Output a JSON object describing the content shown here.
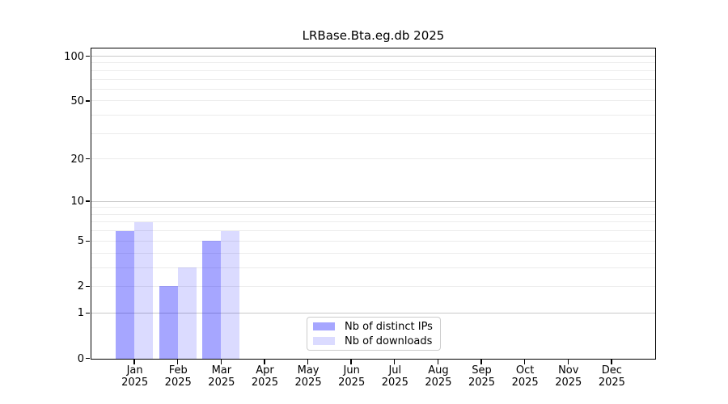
{
  "chart_data": {
    "type": "bar",
    "title": "LRBase.Bta.eg.db 2025",
    "x_axis": {
      "categories": [
        "Jan",
        "Feb",
        "Mar",
        "Apr",
        "May",
        "Jun",
        "Jul",
        "Aug",
        "Sep",
        "Oct",
        "Nov",
        "Dec"
      ],
      "year_label": "2025"
    },
    "y_axis": {
      "scale": "log1p",
      "range": [
        0,
        113
      ],
      "tick_values": [
        0,
        1,
        2,
        5,
        10,
        20,
        50,
        100
      ],
      "tick_labels": [
        "0",
        "1",
        "2",
        "5",
        "10",
        "20",
        "50",
        "100"
      ],
      "major_gridlines": [
        1,
        10,
        100
      ],
      "minor_gridlines": [
        2,
        3,
        4,
        5,
        6,
        7,
        8,
        9,
        20,
        30,
        40,
        50,
        60,
        70,
        80,
        90
      ]
    },
    "series": [
      {
        "name": "Nb of distinct IPs",
        "color": "rgba(0,0,255,0.35)",
        "values": [
          6,
          2,
          5,
          0,
          0,
          0,
          0,
          0,
          0,
          0,
          0,
          0
        ]
      },
      {
        "name": "Nb of downloads",
        "color": "rgba(0,0,255,0.14)",
        "values": [
          7,
          3,
          6,
          0,
          0,
          0,
          0,
          0,
          0,
          0,
          0,
          0
        ]
      }
    ],
    "legend": {
      "position": "lower center"
    },
    "grid": {
      "major_color": "#c9c9c9",
      "minor_color": "#ececec"
    }
  }
}
